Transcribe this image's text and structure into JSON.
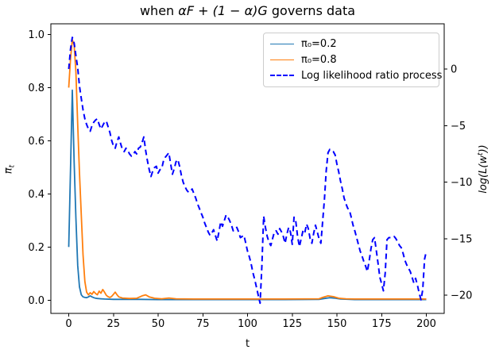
{
  "figure": {
    "title": {
      "prefix": "when ",
      "math": "αF + (1 − α)G",
      "suffix": " governs data"
    },
    "xlabel": "t",
    "ylabel_left": {
      "base": "π",
      "sub": "t"
    },
    "ylabel_right": {
      "prefix": "log(L(w",
      "sup": "t",
      "suffix": "))"
    }
  },
  "chart_data": {
    "type": "line",
    "title": "when αF + (1 − α)G governs data",
    "xlabel": "t",
    "ylabel_left": "π_t",
    "ylabel_right": "log(L(w^t))",
    "xlim": [
      -10,
      210
    ],
    "ylim_left": [
      -0.05,
      1.04
    ],
    "ylim_right": [
      -21.6,
      4.0
    ],
    "x_ticks": [
      0,
      25,
      50,
      75,
      100,
      125,
      150,
      175,
      200
    ],
    "x_tick_labels": [
      "0",
      "25",
      "50",
      "75",
      "100",
      "125",
      "150",
      "175",
      "200"
    ],
    "y_ticks_left": [
      0.0,
      0.2,
      0.4,
      0.6,
      0.8,
      1.0
    ],
    "y_tick_labels_left": [
      "0.0",
      "0.2",
      "0.4",
      "0.6",
      "0.8",
      "1.0"
    ],
    "y_ticks_right": [
      0,
      -5,
      -10,
      -15,
      -20
    ],
    "y_tick_labels_right": [
      "0",
      "−5",
      "−10",
      "−15",
      "−20"
    ],
    "grid": false,
    "legend_position": "upper right",
    "axis_color": "#000000",
    "series": [
      {
        "name": "pi-process-low-prior",
        "legend_label": "π₀=0.2",
        "color": "#1f77b4",
        "style": "solid",
        "axis": "left",
        "points": [
          [
            0,
            0.2
          ],
          [
            1,
            0.5
          ],
          [
            2,
            0.79
          ],
          [
            3,
            0.52
          ],
          [
            4,
            0.31
          ],
          [
            5,
            0.13
          ],
          [
            6,
            0.05
          ],
          [
            7,
            0.02
          ],
          [
            8,
            0.012
          ],
          [
            9,
            0.01
          ],
          [
            10,
            0.009
          ],
          [
            11,
            0.012
          ],
          [
            12,
            0.016
          ],
          [
            13,
            0.012
          ],
          [
            14,
            0.009
          ],
          [
            15,
            0.007
          ],
          [
            16,
            0.006
          ],
          [
            18,
            0.005
          ],
          [
            20,
            0.004
          ],
          [
            25,
            0.003
          ],
          [
            30,
            0.003
          ],
          [
            40,
            0.003
          ],
          [
            50,
            0.002
          ],
          [
            60,
            0.002
          ],
          [
            80,
            0.002
          ],
          [
            100,
            0.002
          ],
          [
            120,
            0.002
          ],
          [
            140,
            0.003
          ],
          [
            143,
            0.006
          ],
          [
            146,
            0.009
          ],
          [
            149,
            0.007
          ],
          [
            152,
            0.004
          ],
          [
            160,
            0.002
          ],
          [
            180,
            0.002
          ],
          [
            200,
            0.002
          ]
        ]
      },
      {
        "name": "pi-process-high-prior",
        "legend_label": "π₀=0.8",
        "color": "#ff7f0e",
        "style": "solid",
        "axis": "left",
        "points": [
          [
            0,
            0.8
          ],
          [
            1,
            0.91
          ],
          [
            2,
            0.98
          ],
          [
            3,
            0.96
          ],
          [
            4,
            0.86
          ],
          [
            5,
            0.66
          ],
          [
            6,
            0.48
          ],
          [
            7,
            0.32
          ],
          [
            8,
            0.17
          ],
          [
            9,
            0.07
          ],
          [
            10,
            0.03
          ],
          [
            11,
            0.02
          ],
          [
            12,
            0.028
          ],
          [
            13,
            0.022
          ],
          [
            14,
            0.032
          ],
          [
            15,
            0.025
          ],
          [
            16,
            0.02
          ],
          [
            17,
            0.034
          ],
          [
            18,
            0.026
          ],
          [
            19,
            0.04
          ],
          [
            20,
            0.03
          ],
          [
            21,
            0.018
          ],
          [
            22,
            0.013
          ],
          [
            23,
            0.01
          ],
          [
            24,
            0.014
          ],
          [
            25,
            0.022
          ],
          [
            26,
            0.03
          ],
          [
            27,
            0.02
          ],
          [
            28,
            0.012
          ],
          [
            30,
            0.008
          ],
          [
            34,
            0.006
          ],
          [
            38,
            0.007
          ],
          [
            41,
            0.016
          ],
          [
            43,
            0.02
          ],
          [
            45,
            0.012
          ],
          [
            48,
            0.007
          ],
          [
            52,
            0.005
          ],
          [
            56,
            0.008
          ],
          [
            60,
            0.005
          ],
          [
            70,
            0.004
          ],
          [
            80,
            0.004
          ],
          [
            100,
            0.004
          ],
          [
            120,
            0.004
          ],
          [
            140,
            0.005
          ],
          [
            142,
            0.01
          ],
          [
            145,
            0.016
          ],
          [
            148,
            0.013
          ],
          [
            151,
            0.007
          ],
          [
            155,
            0.005
          ],
          [
            160,
            0.004
          ],
          [
            180,
            0.004
          ],
          [
            200,
            0.004
          ]
        ]
      },
      {
        "name": "log-likelihood-ratio-process",
        "legend_label": "Log likelihood ratio process",
        "color": "#0000ff",
        "style": "dashed",
        "axis": "right",
        "x_start": 0,
        "x_step": 1,
        "values": [
          0,
          1.8,
          2.8,
          2.3,
          1.2,
          0.1,
          -1.5,
          -2.6,
          -3.6,
          -4.4,
          -4.9,
          -5.3,
          -5.5,
          -5.0,
          -4.7,
          -4.5,
          -4.4,
          -4.9,
          -5.3,
          -5.0,
          -4.7,
          -4.6,
          -5.1,
          -5.6,
          -6.3,
          -6.8,
          -7.0,
          -6.4,
          -6.0,
          -6.6,
          -7.1,
          -7.3,
          -7.0,
          -7.2,
          -7.5,
          -7.7,
          -7.6,
          -7.3,
          -7.5,
          -7.0,
          -6.9,
          -6.5,
          -6.0,
          -7.2,
          -8.1,
          -8.9,
          -9.5,
          -9.0,
          -8.7,
          -8.6,
          -9.2,
          -8.9,
          -8.8,
          -8.1,
          -7.8,
          -7.6,
          -7.4,
          -8.4,
          -9.3,
          -8.8,
          -8.2,
          -8.0,
          -8.6,
          -9.4,
          -10.0,
          -10.4,
          -10.7,
          -10.9,
          -10.8,
          -10.6,
          -11.0,
          -11.4,
          -11.9,
          -12.3,
          -12.7,
          -13.1,
          -13.6,
          -14.0,
          -14.4,
          -14.7,
          -14.5,
          -14.2,
          -14.7,
          -15.2,
          -14.4,
          -13.5,
          -13.9,
          -13.4,
          -12.9,
          -13.1,
          -13.4,
          -13.8,
          -14.3,
          -14.1,
          -14.0,
          -14.4,
          -14.9,
          -14.8,
          -14.7,
          -15.4,
          -16.1,
          -16.6,
          -17.2,
          -18.0,
          -18.6,
          -19.3,
          -20.0,
          -20.7,
          -17.5,
          -13.0,
          -14.0,
          -14.8,
          -15.3,
          -15.6,
          -15.0,
          -14.4,
          -14.3,
          -14.6,
          -14.1,
          -14.4,
          -14.8,
          -15.4,
          -14.6,
          -14.0,
          -14.4,
          -15.5,
          -13.1,
          -13.5,
          -14.8,
          -15.7,
          -15.0,
          -14.3,
          -14.5,
          -13.7,
          -14.1,
          -15.0,
          -15.4,
          -14.5,
          -13.8,
          -14.4,
          -15.0,
          -15.4,
          -13.5,
          -11.5,
          -9.0,
          -7.4,
          -7.1,
          -7.2,
          -7.3,
          -7.6,
          -8.4,
          -9.1,
          -9.9,
          -10.6,
          -11.4,
          -11.9,
          -12.3,
          -12.5,
          -13.1,
          -13.8,
          -14.3,
          -14.9,
          -15.5,
          -16.1,
          -16.5,
          -17.0,
          -17.4,
          -17.9,
          -17.0,
          -15.9,
          -15.1,
          -14.9,
          -16.0,
          -17.2,
          -18.4,
          -19.0,
          -19.6,
          -18.0,
          -15.1,
          -14.9,
          -14.9,
          -14.8,
          -14.8,
          -15.0,
          -15.3,
          -15.6,
          -15.8,
          -16.3,
          -16.9,
          -17.3,
          -17.6,
          -17.9,
          -18.4,
          -18.9,
          -18.5,
          -19.1,
          -19.8,
          -20.4,
          -19.5,
          -16.8,
          -16.1
        ]
      }
    ]
  }
}
